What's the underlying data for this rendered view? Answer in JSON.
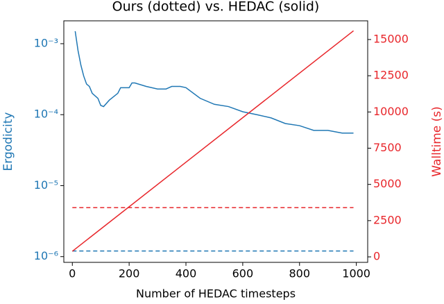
{
  "chart_data": {
    "type": "line",
    "title": "Ours (dotted) vs. HEDAC (solid)",
    "xlabel": "Number of HEDAC timesteps",
    "ylabel": "Ergodicity",
    "y2label": "Walltime (s)",
    "ylabel_color": "#1f77b4",
    "y2label_color": "#e8262b",
    "xlim": [
      -30,
      1040
    ],
    "xticks": [
      0,
      200,
      400,
      600,
      800,
      1000
    ],
    "ylim": [
      8.3e-07,
      0.0021
    ],
    "yscale": "log",
    "yticks": [
      {
        "value": 1e-06,
        "label": "10⁻⁶"
      },
      {
        "value": 1e-05,
        "label": "10⁻⁵"
      },
      {
        "value": 0.0001,
        "label": "10⁻⁴"
      },
      {
        "value": 0.001,
        "label": "10⁻³"
      }
    ],
    "y2lim": [
      -380,
      16290
    ],
    "y2ticks": [
      0,
      2500,
      5000,
      7500,
      10000,
      12500,
      15000
    ],
    "series": [
      {
        "color": "#1f77b4",
        "linestyle": "solid",
        "axis": "y",
        "x": [
          10,
          20,
          30,
          40,
          50,
          60,
          70,
          90,
          100,
          110,
          130,
          160,
          170,
          200,
          210,
          220,
          260,
          300,
          330,
          350,
          380,
          400,
          450,
          500,
          550,
          600,
          650,
          700,
          750,
          800,
          850,
          900,
          950,
          990
        ],
        "values": [
          0.0015,
          0.0008,
          0.0005,
          0.00035,
          0.00027,
          0.00025,
          0.0002,
          0.00017,
          0.000135,
          0.00013,
          0.00016,
          0.0002,
          0.00024,
          0.00024,
          0.00028,
          0.00028,
          0.00025,
          0.00023,
          0.00023,
          0.00025,
          0.00025,
          0.00024,
          0.00017,
          0.00014,
          0.00013,
          0.00011,
          0.0001,
          9e-05,
          7.5e-05,
          7e-05,
          6e-05,
          6e-05,
          5.5e-05,
          5.5e-05
        ]
      },
      {
        "color": "#1f77b4",
        "linestyle": "dashed",
        "axis": "y",
        "x": [
          0,
          990
        ],
        "values": [
          1.2e-06,
          1.2e-06
        ]
      },
      {
        "color": "#e8262b",
        "linestyle": "solid",
        "axis": "y2",
        "x": [
          0,
          990
        ],
        "values": [
          383,
          15600
        ]
      },
      {
        "color": "#e8262b",
        "linestyle": "dashed",
        "axis": "y2",
        "x": [
          0,
          990
        ],
        "values": [
          3400,
          3400
        ]
      }
    ]
  }
}
